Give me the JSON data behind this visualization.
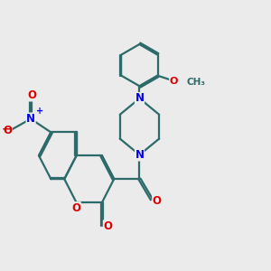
{
  "bg_color": "#ebebeb",
  "bond_color": "#2d6b6b",
  "bond_width": 1.6,
  "dbo": 0.055,
  "atom_colors": {
    "N": "#0000ee",
    "O": "#dd0000"
  },
  "font_size": 8.5
}
